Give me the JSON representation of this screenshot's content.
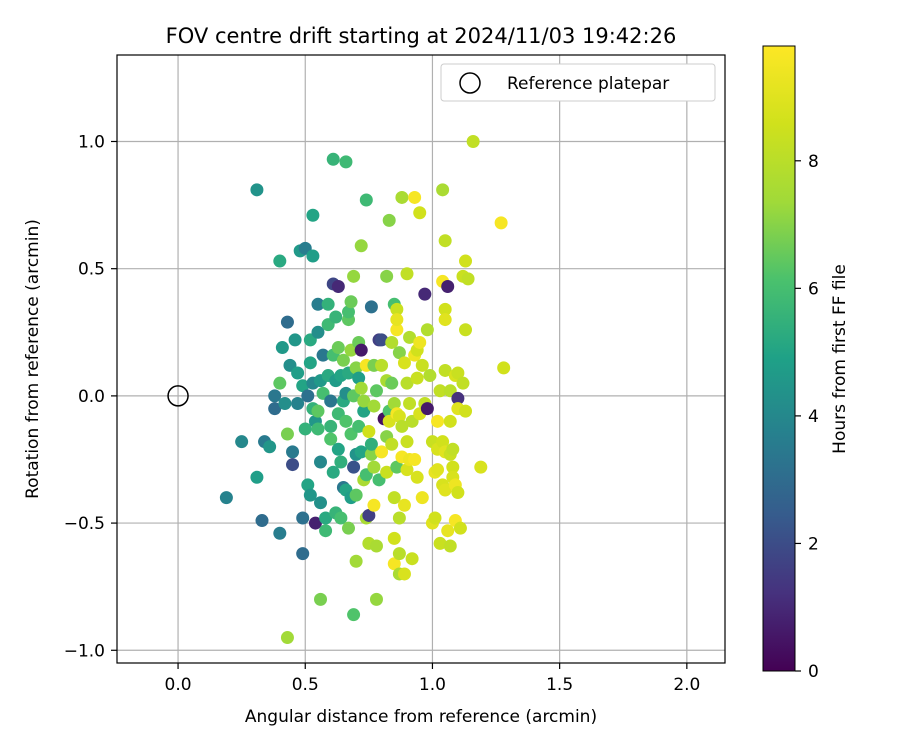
{
  "chart_data": {
    "type": "scatter",
    "title": "FOV centre drift starting at 2024/11/03 19:42:26",
    "xlabel": "Angular distance from reference (arcmin)",
    "ylabel": "Rotation from reference (arcmin)",
    "xlim": [
      -0.24,
      2.15
    ],
    "ylim": [
      -1.05,
      1.34
    ],
    "xticks": [
      0.0,
      0.5,
      1.0,
      1.5,
      2.0
    ],
    "xtick_labels": [
      "0.0",
      "0.5",
      "1.0",
      "1.5",
      "2.0"
    ],
    "yticks": [
      -1.0,
      -0.5,
      0.0,
      0.5,
      1.0
    ],
    "ytick_labels": [
      "−1.0",
      "−0.5",
      "0.0",
      "0.5",
      "1.0"
    ],
    "grid": true,
    "legend": {
      "placement": "top-right",
      "entries": [
        "Reference platepar"
      ]
    },
    "reference_point": {
      "x": 0.0,
      "y": 0.0,
      "label": "Reference platepar"
    },
    "colorbar": {
      "label": "Hours from first FF file",
      "range": [
        0,
        9.8
      ],
      "ticks": [
        0,
        2,
        4,
        6,
        8
      ],
      "tick_labels": [
        "0",
        "2",
        "4",
        "6",
        "8"
      ],
      "colormap": "viridis"
    },
    "points": [
      [
        0.19,
        -0.4,
        3.8
      ],
      [
        0.25,
        -0.18,
        4.0
      ],
      [
        0.31,
        0.81,
        4.4
      ],
      [
        0.31,
        -0.32,
        4.8
      ],
      [
        0.33,
        -0.49,
        3.0
      ],
      [
        0.34,
        -0.18,
        3.5
      ],
      [
        0.36,
        -0.2,
        4.5
      ],
      [
        0.38,
        0.0,
        3.4
      ],
      [
        0.38,
        -0.05,
        3.0
      ],
      [
        0.4,
        0.53,
        5.2
      ],
      [
        0.4,
        -0.54,
        3.6
      ],
      [
        0.4,
        0.05,
        6.4
      ],
      [
        0.41,
        0.19,
        4.6
      ],
      [
        0.42,
        -0.03,
        4.2
      ],
      [
        0.43,
        0.29,
        3.0
      ],
      [
        0.43,
        -0.15,
        6.8
      ],
      [
        0.43,
        -0.95,
        7.4
      ],
      [
        0.44,
        0.12,
        4.2
      ],
      [
        0.45,
        -0.22,
        3.5
      ],
      [
        0.45,
        -0.27,
        2.0
      ],
      [
        0.46,
        0.22,
        4.5
      ],
      [
        0.47,
        0.09,
        4.8
      ],
      [
        0.47,
        -0.03,
        3.8
      ],
      [
        0.48,
        0.57,
        4.6
      ],
      [
        0.49,
        -0.48,
        3.2
      ],
      [
        0.49,
        -0.62,
        3.0
      ],
      [
        0.49,
        0.04,
        5.0
      ],
      [
        0.5,
        -0.13,
        5.5
      ],
      [
        0.5,
        0.58,
        3.6
      ],
      [
        0.51,
        0.0,
        3.2
      ],
      [
        0.51,
        -0.35,
        5.0
      ],
      [
        0.52,
        0.22,
        5.2
      ],
      [
        0.52,
        0.13,
        5.0
      ],
      [
        0.52,
        -0.39,
        4.5
      ],
      [
        0.53,
        0.05,
        4.0
      ],
      [
        0.53,
        0.71,
        5.0
      ],
      [
        0.53,
        -0.05,
        5.5
      ],
      [
        0.53,
        0.55,
        4.8
      ],
      [
        0.54,
        -0.1,
        4.5
      ],
      [
        0.54,
        -0.5,
        0.8
      ],
      [
        0.55,
        0.36,
        3.6
      ],
      [
        0.55,
        0.25,
        4.2
      ],
      [
        0.55,
        -0.06,
        6.4
      ],
      [
        0.55,
        -0.13,
        5.8
      ],
      [
        0.56,
        -0.26,
        4.0
      ],
      [
        0.56,
        -0.8,
        6.8
      ],
      [
        0.56,
        0.06,
        4.6
      ],
      [
        0.56,
        -0.42,
        4.3
      ],
      [
        0.57,
        0.16,
        3.4
      ],
      [
        0.57,
        0.01,
        6.0
      ],
      [
        0.58,
        -0.48,
        5.2
      ],
      [
        0.58,
        -0.53,
        5.8
      ],
      [
        0.59,
        0.28,
        5.8
      ],
      [
        0.59,
        0.36,
        5.5
      ],
      [
        0.59,
        0.08,
        5.2
      ],
      [
        0.6,
        -0.02,
        3.4
      ],
      [
        0.6,
        -0.12,
        5.6
      ],
      [
        0.6,
        -0.17,
        6.2
      ],
      [
        0.61,
        0.93,
        5.6
      ],
      [
        0.61,
        0.44,
        1.8
      ],
      [
        0.61,
        0.16,
        6.0
      ],
      [
        0.61,
        -0.3,
        5.2
      ],
      [
        0.62,
        0.06,
        4.7
      ],
      [
        0.62,
        0.31,
        5.6
      ],
      [
        0.62,
        -0.46,
        5.6
      ],
      [
        0.63,
        -0.21,
        5.0
      ],
      [
        0.63,
        0.43,
        1.0
      ],
      [
        0.63,
        0.19,
        6.6
      ],
      [
        0.63,
        -0.07,
        5.8
      ],
      [
        0.64,
        0.08,
        5.0
      ],
      [
        0.64,
        -0.26,
        5.4
      ],
      [
        0.64,
        -0.48,
        6.0
      ],
      [
        0.65,
        -0.36,
        3.4
      ],
      [
        0.65,
        0.14,
        6.8
      ],
      [
        0.65,
        -0.02,
        5.2
      ],
      [
        0.66,
        0.92,
        5.8
      ],
      [
        0.66,
        -0.37,
        5.0
      ],
      [
        0.66,
        0.01,
        4.2
      ],
      [
        0.66,
        -0.1,
        6.2
      ],
      [
        0.67,
        0.3,
        6.4
      ],
      [
        0.67,
        -0.52,
        6.8
      ],
      [
        0.67,
        0.33,
        6.0
      ],
      [
        0.67,
        0.09,
        5.2
      ],
      [
        0.68,
        0.37,
        6.6
      ],
      [
        0.68,
        -0.4,
        4.8
      ],
      [
        0.68,
        0.18,
        7.2
      ],
      [
        0.68,
        -0.15,
        6.2
      ],
      [
        0.69,
        0.47,
        7.2
      ],
      [
        0.69,
        -0.86,
        6.2
      ],
      [
        0.69,
        0.0,
        6.4
      ],
      [
        0.69,
        -0.28,
        2.2
      ],
      [
        0.7,
        -0.39,
        6.4
      ],
      [
        0.7,
        -0.23,
        4.4
      ],
      [
        0.7,
        0.11,
        7.0
      ],
      [
        0.7,
        -0.65,
        7.4
      ],
      [
        0.71,
        0.21,
        6.6
      ],
      [
        0.71,
        -0.12,
        6.0
      ],
      [
        0.71,
        0.07,
        4.8
      ],
      [
        0.72,
        0.18,
        0.6
      ],
      [
        0.72,
        0.03,
        7.4
      ],
      [
        0.72,
        -0.22,
        5.0
      ],
      [
        0.72,
        0.59,
        7.2
      ],
      [
        0.73,
        -0.33,
        7.6
      ],
      [
        0.73,
        -0.06,
        5.0
      ],
      [
        0.73,
        -0.02,
        7.2
      ],
      [
        0.74,
        0.77,
        5.8
      ],
      [
        0.74,
        0.12,
        9.6
      ],
      [
        0.74,
        -0.48,
        7.6
      ],
      [
        0.74,
        -0.31,
        6.0
      ],
      [
        0.75,
        -0.14,
        8.6
      ],
      [
        0.75,
        -0.58,
        7.8
      ],
      [
        0.75,
        -0.47,
        1.6
      ],
      [
        0.76,
        -0.23,
        7.0
      ],
      [
        0.76,
        0.35,
        3.2
      ],
      [
        0.76,
        -0.19,
        5.4
      ],
      [
        0.77,
        -0.04,
        7.4
      ],
      [
        0.77,
        0.12,
        6.8
      ],
      [
        0.77,
        -0.28,
        7.4
      ],
      [
        0.77,
        -0.43,
        9.6
      ],
      [
        0.78,
        -0.8,
        7.2
      ],
      [
        0.78,
        0.02,
        6.4
      ],
      [
        0.78,
        -0.59,
        7.6
      ],
      [
        0.79,
        0.22,
        1.6
      ],
      [
        0.79,
        -0.33,
        6.0
      ],
      [
        0.8,
        0.22,
        2.0
      ],
      [
        0.8,
        -0.22,
        9.6
      ],
      [
        0.8,
        0.12,
        8.0
      ],
      [
        0.81,
        -0.09,
        0.4
      ],
      [
        0.82,
        0.06,
        7.6
      ],
      [
        0.82,
        -0.16,
        7.0
      ],
      [
        0.82,
        0.47,
        7.0
      ],
      [
        0.82,
        -0.3,
        8.4
      ],
      [
        0.83,
        -0.06,
        6.2
      ],
      [
        0.83,
        0.69,
        7.0
      ],
      [
        0.83,
        -0.1,
        8.8
      ],
      [
        0.84,
        0.21,
        7.8
      ],
      [
        0.84,
        -0.19,
        8.2
      ],
      [
        0.84,
        0.05,
        6.6
      ],
      [
        0.85,
        -0.4,
        8.2
      ],
      [
        0.85,
        -0.03,
        7.4
      ],
      [
        0.85,
        0.36,
        6.0
      ],
      [
        0.85,
        -0.56,
        8.6
      ],
      [
        0.85,
        -0.66,
        9.6
      ],
      [
        0.86,
        -0.07,
        9.6
      ],
      [
        0.86,
        0.26,
        9.6
      ],
      [
        0.86,
        0.34,
        8.4
      ],
      [
        0.86,
        -0.28,
        6.4
      ],
      [
        0.86,
        0.3,
        9.2
      ],
      [
        0.87,
        0.17,
        7.0
      ],
      [
        0.87,
        -0.48,
        8.0
      ],
      [
        0.87,
        -0.08,
        8.8
      ],
      [
        0.87,
        -0.62,
        8.0
      ],
      [
        0.87,
        -0.7,
        7.6
      ],
      [
        0.88,
        0.78,
        7.6
      ],
      [
        0.88,
        -0.24,
        9.6
      ],
      [
        0.88,
        -0.12,
        8.0
      ],
      [
        0.89,
        0.13,
        8.8
      ],
      [
        0.89,
        -0.7,
        8.8
      ],
      [
        0.89,
        -0.43,
        9.2
      ],
      [
        0.9,
        -0.29,
        8.8
      ],
      [
        0.9,
        0.48,
        8.2
      ],
      [
        0.9,
        -0.18,
        8.4
      ],
      [
        0.9,
        0.05,
        8.0
      ],
      [
        0.91,
        -0.25,
        9.4
      ],
      [
        0.91,
        0.23,
        7.8
      ],
      [
        0.91,
        -0.03,
        8.2
      ],
      [
        0.92,
        -0.1,
        8.0
      ],
      [
        0.92,
        -0.64,
        8.4
      ],
      [
        0.93,
        0.78,
        9.6
      ],
      [
        0.93,
        0.16,
        9.4
      ],
      [
        0.93,
        -0.25,
        9.6
      ],
      [
        0.94,
        0.07,
        8.4
      ],
      [
        0.94,
        -0.32,
        8.8
      ],
      [
        0.94,
        0.18,
        8.6
      ],
      [
        0.95,
        0.72,
        8.6
      ],
      [
        0.95,
        0.21,
        9.4
      ],
      [
        0.95,
        -0.07,
        8.8
      ],
      [
        0.96,
        -0.4,
        9.4
      ],
      [
        0.96,
        0.12,
        8.4
      ],
      [
        0.97,
        -0.03,
        8.2
      ],
      [
        0.97,
        0.4,
        1.0
      ],
      [
        0.98,
        0.26,
        7.8
      ],
      [
        0.98,
        -0.05,
        0.6
      ],
      [
        0.99,
        0.08,
        7.8
      ],
      [
        1.0,
        -0.5,
        9.0
      ],
      [
        1.0,
        -0.18,
        8.4
      ],
      [
        1.01,
        -0.48,
        8.6
      ],
      [
        1.01,
        -0.3,
        9.2
      ],
      [
        1.02,
        -0.1,
        9.6
      ],
      [
        1.02,
        -0.21,
        8.8
      ],
      [
        1.02,
        -0.29,
        9.0
      ],
      [
        1.03,
        -0.58,
        8.4
      ],
      [
        1.03,
        0.02,
        8.2
      ],
      [
        1.04,
        -0.35,
        8.8
      ],
      [
        1.04,
        0.81,
        7.6
      ],
      [
        1.04,
        -0.18,
        8.6
      ],
      [
        1.04,
        0.45,
        9.6
      ],
      [
        1.05,
        0.34,
        8.6
      ],
      [
        1.05,
        0.3,
        9.0
      ],
      [
        1.05,
        0.61,
        8.2
      ],
      [
        1.05,
        -0.37,
        9.0
      ],
      [
        1.05,
        0.1,
        8.2
      ],
      [
        1.05,
        -0.22,
        9.0
      ],
      [
        1.06,
        -0.53,
        9.2
      ],
      [
        1.06,
        0.43,
        0.8
      ],
      [
        1.07,
        -0.1,
        8.6
      ],
      [
        1.07,
        -0.59,
        8.2
      ],
      [
        1.07,
        -0.23,
        8.4
      ],
      [
        1.07,
        0.02,
        8.0
      ],
      [
        1.08,
        -0.28,
        8.6
      ],
      [
        1.08,
        -0.32,
        8.8
      ],
      [
        1.08,
        -0.21,
        8.2
      ],
      [
        1.09,
        0.08,
        8.8
      ],
      [
        1.09,
        -0.35,
        9.4
      ],
      [
        1.09,
        -0.49,
        9.6
      ],
      [
        1.1,
        -0.38,
        8.6
      ],
      [
        1.1,
        0.09,
        8.4
      ],
      [
        1.1,
        -0.01,
        1.2
      ],
      [
        1.1,
        -0.05,
        9.0
      ],
      [
        1.11,
        -0.52,
        8.6
      ],
      [
        1.12,
        0.05,
        8.2
      ],
      [
        1.12,
        0.47,
        8.4
      ],
      [
        1.13,
        0.26,
        8.4
      ],
      [
        1.13,
        0.53,
        8.6
      ],
      [
        1.13,
        -0.06,
        8.6
      ],
      [
        1.14,
        0.46,
        8.2
      ],
      [
        1.16,
        1.0,
        8.2
      ],
      [
        1.19,
        -0.28,
        8.8
      ],
      [
        1.27,
        0.68,
        9.6
      ],
      [
        1.28,
        0.11,
        8.6
      ]
    ]
  }
}
